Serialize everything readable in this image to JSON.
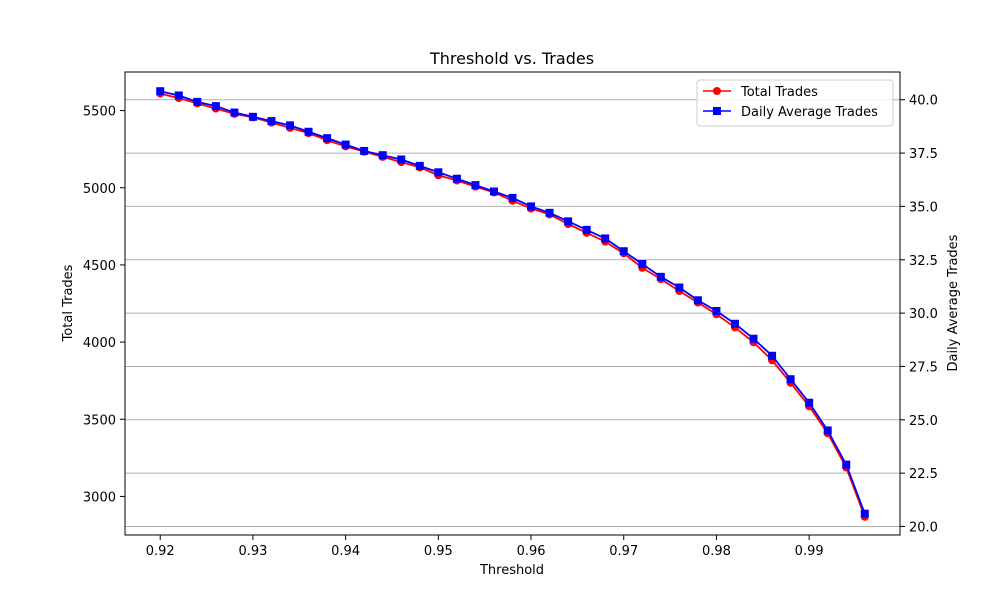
{
  "chart_data": {
    "type": "line",
    "title": "Threshold vs. Trades",
    "xlabel": "Threshold",
    "ylabel_left": "Total Trades",
    "ylabel_right": "Daily Average Trades",
    "xlim": [
      0.9162,
      0.9998
    ],
    "ylim_left": [
      2750,
      5750
    ],
    "ylim_right": [
      19.6,
      41.3
    ],
    "x_ticks": [
      0.92,
      0.93,
      0.94,
      0.95,
      0.96,
      0.97,
      0.98,
      0.99
    ],
    "x_tick_labels": [
      "0.92",
      "0.93",
      "0.94",
      "0.95",
      "0.96",
      "0.97",
      "0.98",
      "0.99"
    ],
    "y_left_ticks": [
      3000,
      3500,
      4000,
      4500,
      5000,
      5500
    ],
    "y_left_tick_labels": [
      "3000",
      "3500",
      "4000",
      "4500",
      "5000",
      "5500"
    ],
    "y_right_ticks": [
      20.0,
      22.5,
      25.0,
      27.5,
      30.0,
      32.5,
      35.0,
      37.5,
      40.0
    ],
    "y_right_tick_labels": [
      "20.0",
      "22.5",
      "25.0",
      "27.5",
      "30.0",
      "32.5",
      "35.0",
      "37.5",
      "40.0"
    ],
    "grid": "horizontal lines at right-axis ticks",
    "legend_position": "upper right",
    "x": [
      0.92,
      0.922,
      0.924,
      0.926,
      0.928,
      0.93,
      0.932,
      0.934,
      0.936,
      0.938,
      0.94,
      0.942,
      0.944,
      0.946,
      0.948,
      0.95,
      0.952,
      0.954,
      0.956,
      0.958,
      0.96,
      0.962,
      0.964,
      0.966,
      0.968,
      0.97,
      0.972,
      0.974,
      0.976,
      0.978,
      0.98,
      0.982,
      0.984,
      0.986,
      0.988,
      0.99,
      0.992,
      0.994,
      0.996
    ],
    "series": [
      {
        "name": "Total Trades",
        "axis": "left",
        "color": "#ff0000",
        "marker": "circle",
        "values": [
          5610,
          5581,
          5547,
          5513,
          5479,
          5456,
          5422,
          5388,
          5354,
          5308,
          5268,
          5234,
          5200,
          5166,
          5132,
          5081,
          5047,
          5007,
          4970,
          4916,
          4865,
          4827,
          4765,
          4708,
          4651,
          4575,
          4481,
          4408,
          4331,
          4256,
          4180,
          4095,
          3999,
          3882,
          3736,
          3584,
          3409,
          3187,
          2868
        ]
      },
      {
        "name": "Daily Average Trades",
        "axis": "right",
        "color": "#0000ff",
        "marker": "square",
        "values": [
          40.4,
          40.2,
          39.9,
          39.7,
          39.4,
          39.2,
          39.0,
          38.8,
          38.5,
          38.2,
          37.9,
          37.6,
          37.4,
          37.2,
          36.9,
          36.6,
          36.3,
          36.0,
          35.7,
          35.4,
          35.0,
          34.7,
          34.3,
          33.9,
          33.5,
          32.9,
          32.3,
          31.7,
          31.2,
          30.6,
          30.1,
          29.5,
          28.8,
          28.0,
          26.9,
          25.8,
          24.5,
          22.9,
          20.6
        ]
      }
    ]
  }
}
